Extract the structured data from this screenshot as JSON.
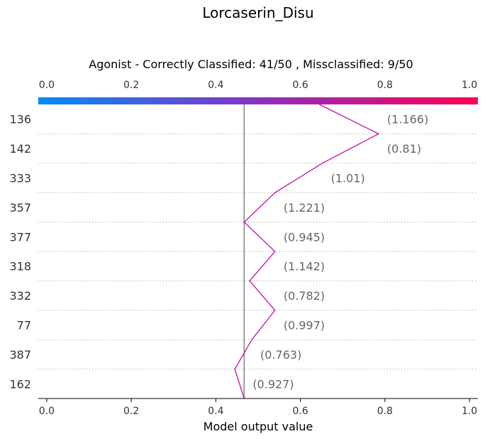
{
  "chart_data": {
    "type": "line",
    "plot_style": "shap-decision-plot",
    "title": "Lorcaserin_Disu",
    "subtitle": "Agonist - Correctly Classified: 41/50 , Missclassified: 9/50",
    "xlabel": "Model output value",
    "xlim": [
      -0.02,
      1.02
    ],
    "x_ticks": [
      0.0,
      0.2,
      0.4,
      0.6,
      0.8,
      1.0
    ],
    "x_tick_labels": [
      "0.0",
      "0.2",
      "0.4",
      "0.6",
      "0.8",
      "1.0"
    ],
    "base_value": 0.467,
    "features": [
      "136",
      "142",
      "333",
      "357",
      "377",
      "318",
      "332",
      "77",
      "387",
      "162"
    ],
    "feature_value_labels": [
      "(1.166)",
      "(0.81)",
      "(1.01)",
      "(1.221)",
      "(0.945)",
      "(1.142)",
      "(0.782)",
      "(0.997)",
      "(0.763)",
      "(0.927)"
    ],
    "path_x": [
      0.645,
      0.785,
      0.652,
      0.54,
      0.467,
      0.54,
      0.48,
      0.54,
      0.485,
      0.445,
      0.467
    ],
    "path_y_levels": [
      "top",
      "136/142",
      "142/333",
      "333/357",
      "357/377",
      "377/318",
      "318/332",
      "332/77",
      "77/387",
      "387/162",
      "bottom"
    ],
    "colorbar": {
      "min": 0.0,
      "max": 1.0,
      "colors": [
        "#008bfb",
        "#ff0052"
      ]
    },
    "line_color": "#c40fa0",
    "grid": "dotted horizontal",
    "legend": "none"
  }
}
